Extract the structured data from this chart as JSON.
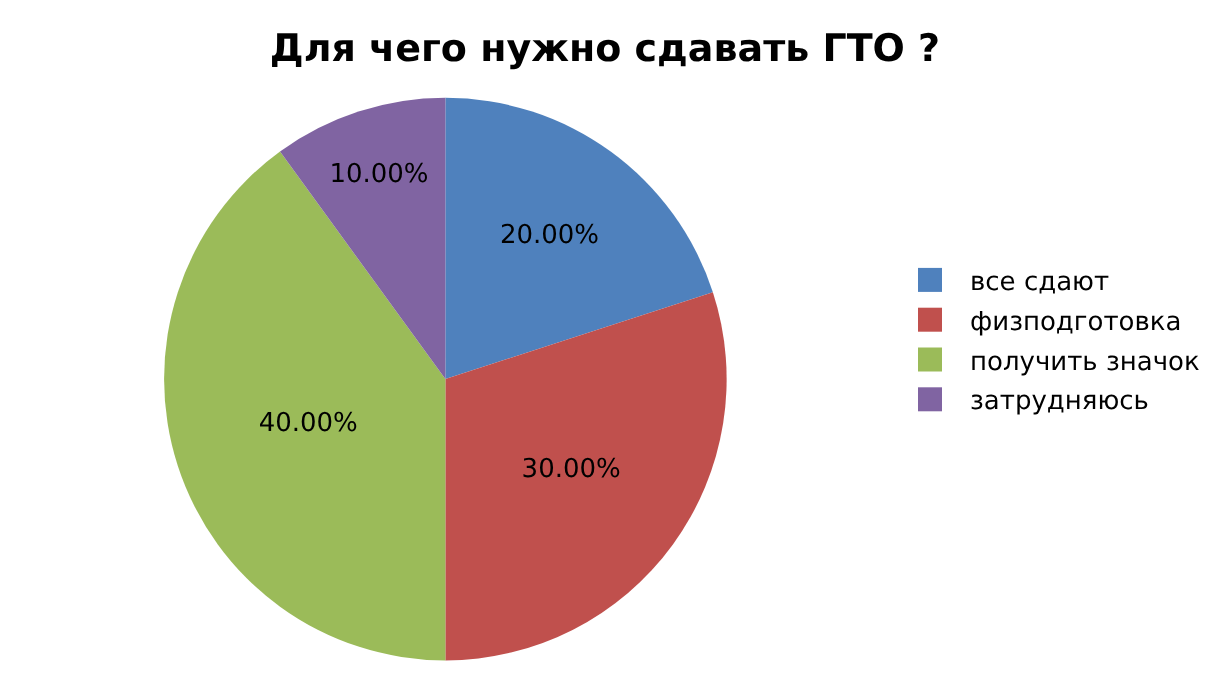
{
  "chart_data": {
    "type": "pie",
    "title": "Для чего нужно сдавать ГТО ?",
    "categories": [
      "все сдают",
      "физподготовка",
      "получить значок",
      "затрудняюсь"
    ],
    "values": [
      20,
      30,
      40,
      10
    ],
    "colors": [
      "#4f81bd",
      "#c0504d",
      "#9bbb59",
      "#8064a2"
    ],
    "value_labels": [
      "20.00%",
      "30.00%",
      "40.00%",
      "10.00%"
    ],
    "legend": "right"
  }
}
